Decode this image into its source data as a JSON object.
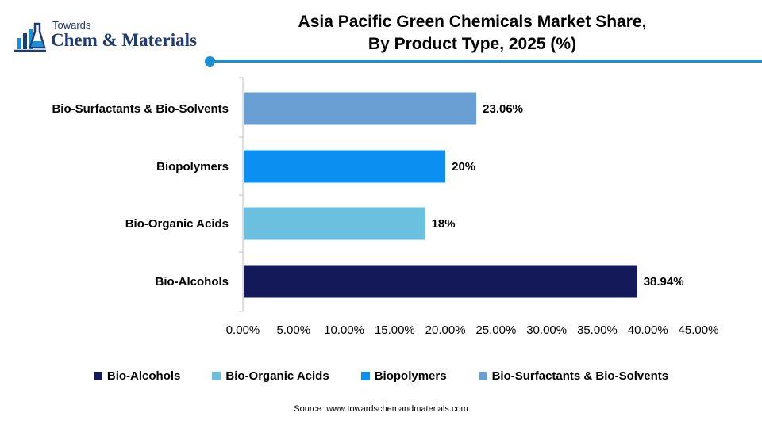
{
  "brand": {
    "top_text": "Towards",
    "main_text": "Chem & Materials"
  },
  "source_text": "Source: www.towardschemandmaterials.com",
  "colors": {
    "accent": "#1a8fd6",
    "brand": "#1f3b73"
  },
  "chart_data": {
    "type": "bar",
    "orientation": "horizontal",
    "title": "Asia Pacific Green Chemicals Market Share, By Product Type, 2025 (%)",
    "title_lines": [
      "Asia Pacific Green Chemicals Market Share,",
      "By Product Type, 2025 (%)"
    ],
    "categories": [
      "Bio-Alcohols",
      "Bio-Organic Acids",
      "Biopolymers",
      "Bio-Surfactants & Bio-Solvents"
    ],
    "values": [
      38.94,
      18,
      20,
      23.06
    ],
    "value_labels": [
      "38.94%",
      "18%",
      "20%",
      "23.06%"
    ],
    "colors": [
      "#14195a",
      "#6bbfdf",
      "#0b8ff0",
      "#6a9fd3"
    ],
    "xlim": [
      0,
      45
    ],
    "xticks": [
      "0.00%",
      "5.00%",
      "10.00%",
      "15.00%",
      "20.00%",
      "25.00%",
      "30.00%",
      "35.00%",
      "40.00%",
      "45.00%"
    ],
    "xlabel": "",
    "ylabel": "",
    "grid": false,
    "legend": {
      "position": "bottom",
      "entries": [
        "Bio-Alcohols",
        "Bio-Organic Acids",
        "Biopolymers",
        "Bio-Surfactants & Bio-Solvents"
      ]
    }
  }
}
